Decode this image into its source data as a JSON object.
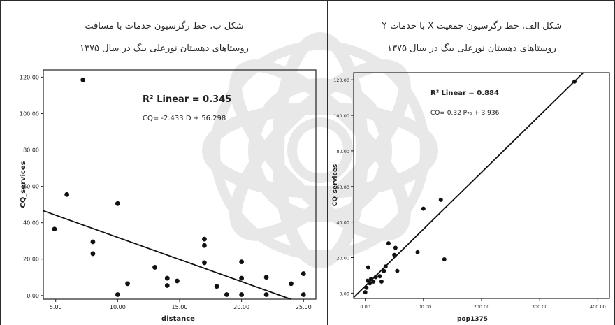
{
  "figures": {
    "left_caption_line1": "شکل ب، خط رگرسیون خدمات با مسافت",
    "left_caption_line2": "روستاهای دهستان نورعلی بیگ در سال ۱۳۷۵",
    "right_caption_line1": "شکل الف، خط رگرسیون جمعیت X با خدمات Y",
    "right_caption_line2": "روستاهای دهستان نورعلی بیگ در سال ۱۳۷۵"
  },
  "chart_data": [
    {
      "type": "scatter",
      "xlabel": "distance",
      "ylabel": "CQ_services",
      "xlim": [
        4,
        26
      ],
      "ylim": [
        -2,
        124
      ],
      "x_ticks": [
        "5.00",
        "10.00",
        "15.00",
        "20.00",
        "25.00"
      ],
      "y_ticks": [
        "0.00",
        "20.00",
        "40.00",
        "60.00",
        "80.00",
        "100.00",
        "120.00"
      ],
      "annotation_r2": "R² Linear = 0.345",
      "annotation_equation": "CQ= -2.433 D + 56.298",
      "fit_line": {
        "slope": -2.433,
        "intercept": 56.298
      },
      "points": [
        {
          "x": 4.9,
          "y": 36.5
        },
        {
          "x": 5.9,
          "y": 55.5
        },
        {
          "x": 7.2,
          "y": 118.5
        },
        {
          "x": 8.0,
          "y": 29.5
        },
        {
          "x": 8.0,
          "y": 23.0
        },
        {
          "x": 10.0,
          "y": 50.5
        },
        {
          "x": 10.0,
          "y": 0.5
        },
        {
          "x": 10.8,
          "y": 6.5
        },
        {
          "x": 13.0,
          "y": 15.5
        },
        {
          "x": 14.0,
          "y": 9.5
        },
        {
          "x": 14.0,
          "y": 5.5
        },
        {
          "x": 14.8,
          "y": 8.0
        },
        {
          "x": 17.0,
          "y": 31.0
        },
        {
          "x": 17.0,
          "y": 27.5
        },
        {
          "x": 17.0,
          "y": 18.0
        },
        {
          "x": 18.0,
          "y": 5.0
        },
        {
          "x": 18.8,
          "y": 0.5
        },
        {
          "x": 20.0,
          "y": 18.5
        },
        {
          "x": 20.0,
          "y": 9.5
        },
        {
          "x": 20.0,
          "y": 0.5
        },
        {
          "x": 22.0,
          "y": 10.0
        },
        {
          "x": 22.0,
          "y": 0.5
        },
        {
          "x": 24.0,
          "y": 6.5
        },
        {
          "x": 25.0,
          "y": 12.0
        },
        {
          "x": 25.0,
          "y": 0.5
        }
      ]
    },
    {
      "type": "scatter",
      "xlabel": "pop1375",
      "ylabel": "CQ_services",
      "xlim": [
        -20,
        420
      ],
      "ylim": [
        -3,
        124
      ],
      "x_ticks": [
        "0.00",
        "100.00",
        "200.00",
        "300.00",
        "400.00"
      ],
      "y_ticks": [
        "0.00",
        "20.00",
        "40.00",
        "60.00",
        "80.00",
        "100.00",
        "120.00"
      ],
      "annotation_r2": "R² Linear = 0.884",
      "annotation_equation": "CQ= 0.32 P₇₅ + 3.936",
      "fit_line": {
        "slope": 0.32,
        "intercept": 3.936
      },
      "points": [
        {
          "x": 0,
          "y": 0.5
        },
        {
          "x": 2,
          "y": 3.0
        },
        {
          "x": 4,
          "y": 7.0
        },
        {
          "x": 5,
          "y": 14.5
        },
        {
          "x": 8,
          "y": 5.5
        },
        {
          "x": 10,
          "y": 8.0
        },
        {
          "x": 14,
          "y": 6.5
        },
        {
          "x": 18,
          "y": 9.0
        },
        {
          "x": 25,
          "y": 9.5
        },
        {
          "x": 28,
          "y": 6.5
        },
        {
          "x": 32,
          "y": 12.5
        },
        {
          "x": 35,
          "y": 15.0
        },
        {
          "x": 40,
          "y": 28.0
        },
        {
          "x": 50,
          "y": 21.5
        },
        {
          "x": 52,
          "y": 25.5
        },
        {
          "x": 55,
          "y": 12.5
        },
        {
          "x": 90,
          "y": 23.0
        },
        {
          "x": 100,
          "y": 47.5
        },
        {
          "x": 130,
          "y": 52.5
        },
        {
          "x": 136,
          "y": 19.0
        },
        {
          "x": 360,
          "y": 119.0
        }
      ]
    }
  ]
}
